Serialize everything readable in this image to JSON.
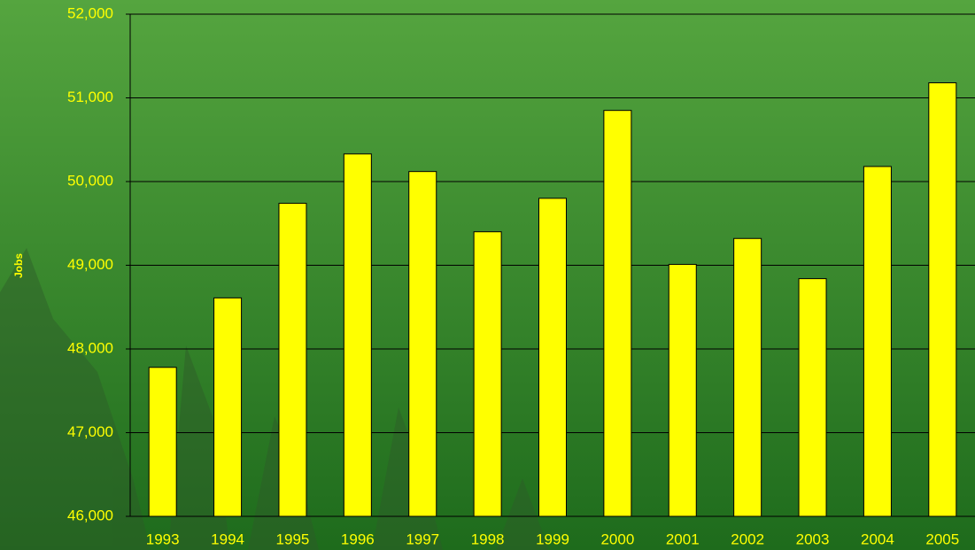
{
  "chart_data": {
    "type": "bar",
    "y_label": "Jobs",
    "categories": [
      "1993",
      "1994",
      "1995",
      "1996",
      "1997",
      "1998",
      "1999",
      "2000",
      "2001",
      "2002",
      "2003",
      "2004",
      "2005"
    ],
    "values": [
      47780,
      48610,
      49740,
      50330,
      50120,
      49400,
      49800,
      50850,
      49010,
      49320,
      48840,
      50180,
      51180
    ],
    "color": "#ffff00",
    "ylim": [
      46000,
      52000
    ],
    "yticks": [
      {
        "value": 46000,
        "label": "46,000"
      },
      {
        "value": 47000,
        "label": "47,000"
      },
      {
        "value": 48000,
        "label": "48,000"
      },
      {
        "value": 49000,
        "label": "49,000"
      },
      {
        "value": 50000,
        "label": "50,000"
      },
      {
        "value": 51000,
        "label": "51,000"
      },
      {
        "value": 52000,
        "label": "52,000"
      }
    ],
    "grid": true
  }
}
